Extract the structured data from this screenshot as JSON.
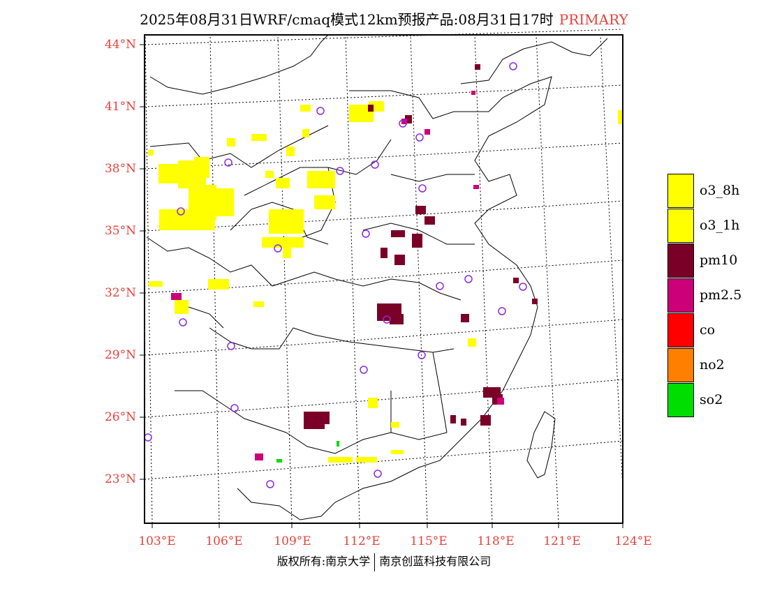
{
  "title": {
    "text": "2025年08月31日WRF/cmaq模式12km预报产品:08月31日17时",
    "tag": "PRIMARY",
    "tag_color": "#e8413b"
  },
  "axes": {
    "lat_labels": [
      "44°N",
      "41°N",
      "38°N",
      "35°N",
      "32°N",
      "29°N",
      "26°N",
      "23°N"
    ],
    "lon_labels": [
      "103°E",
      "106°E",
      "109°E",
      "112°E",
      "115°E",
      "118°E",
      "121°E",
      "124°E"
    ],
    "label_color": "#e8413b"
  },
  "legend": [
    {
      "label": "o3_8h",
      "color": "#ffff00"
    },
    {
      "label": "o3_1h",
      "color": "#ffff00"
    },
    {
      "label": "pm10",
      "color": "#7a0028"
    },
    {
      "label": "pm2.5",
      "color": "#cc0077"
    },
    {
      "label": "co",
      "color": "#ff0000"
    },
    {
      "label": "no2",
      "color": "#ff7f00"
    },
    {
      "label": "so2",
      "color": "#00dd00"
    }
  ],
  "footer": {
    "left": "版权所有:南京大学",
    "right": "南京创蓝科技有限公司"
  }
}
